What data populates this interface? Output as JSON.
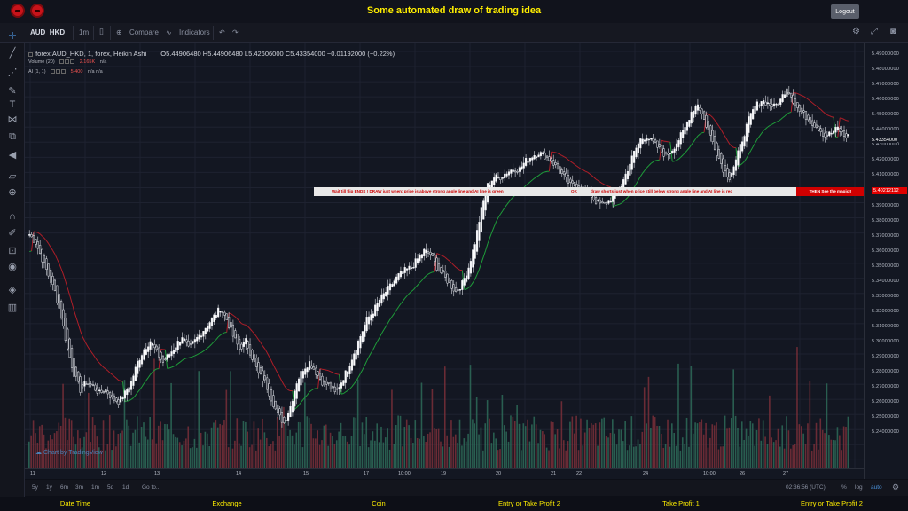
{
  "app_title": "Some automated draw of trading idea",
  "logout_label": "Logout",
  "toolbar": {
    "symbol": "AUD_HKD",
    "interval": "1m",
    "compare": "Compare",
    "indicators": "Indicators"
  },
  "legend": {
    "title": "forex:AUD_HKD, 1, forex, Heikin Ashi",
    "ohlc": "O5.44906480  H5.44906480  L5.42606000  C5.43354000  −0.01192000 (−0.22%)",
    "volume": "Volume (20)",
    "volume_value": "2.165K",
    "volume_na": "n/a",
    "ai": "AI (1, 1)",
    "ai_value": "5.400",
    "ai_na": "n/a  n/a"
  },
  "banner": {
    "part1": "Wait till flip ENDS  !   DRAW just when: price is above strong angle line and AI line is green",
    "ok": "OK",
    "part2": "draw shorts just when price still below strong angle line and AI line is red",
    "magic": "THEN See the magic!!"
  },
  "price_axis": [
    "5.49000000",
    "5.48000000",
    "5.47000000",
    "5.46000000",
    "5.45000000",
    "5.44000000",
    "5.43000000",
    "5.42000000",
    "5.41000000",
    "5.40000000",
    "5.39000000",
    "5.38000000",
    "5.37000000",
    "5.36000000",
    "5.35000000",
    "5.34000000",
    "5.33000000",
    "5.32000000",
    "5.31000000",
    "5.30000000",
    "5.29000000",
    "5.28000000",
    "5.27000000",
    "5.26000000",
    "5.25000000",
    "5.24000000"
  ],
  "current_price": "5.43354000",
  "marker_price": "5.40212112",
  "time_axis": [
    "11",
    "12",
    "13",
    "14",
    "15",
    "17",
    "10:00",
    "19",
    "20",
    "21",
    "22",
    "24",
    "10:00",
    "26",
    "27"
  ],
  "bottom": {
    "ranges": [
      "5y",
      "1y",
      "6m",
      "3m",
      "1m",
      "5d",
      "1d"
    ],
    "goto": "Go to...",
    "clock": "02:36:56 (UTC)",
    "percent": "%",
    "log": "log",
    "auto": "auto"
  },
  "watermark": "Chart by TradingView",
  "footer": [
    "Date Time",
    "Exchange",
    "Coin",
    "Entry or Take Profit 2",
    "Take Profit 1",
    "Entry or Take Profit 2"
  ],
  "colors": {
    "accent": "#ffee00",
    "up": "#26a69a",
    "down": "#ef5350",
    "banner_red": "#d00000"
  },
  "chart_data": {
    "type": "candlestick",
    "style": "Heikin Ashi",
    "ylim": [
      5.235,
      5.495
    ],
    "close_path": [
      5.38,
      5.375,
      5.365,
      5.355,
      5.345,
      5.33,
      5.31,
      5.295,
      5.285,
      5.29,
      5.287,
      5.283,
      5.285,
      5.28,
      5.278,
      5.283,
      5.29,
      5.302,
      5.31,
      5.315,
      5.308,
      5.302,
      5.307,
      5.312,
      5.318,
      5.31,
      5.315,
      5.32,
      5.325,
      5.33,
      5.335,
      5.328,
      5.318,
      5.31,
      5.315,
      5.305,
      5.295,
      5.29,
      5.28,
      5.27,
      5.265,
      5.275,
      5.29,
      5.298,
      5.302,
      5.296,
      5.29,
      5.288,
      5.283,
      5.29,
      5.298,
      5.308,
      5.318,
      5.328,
      5.333,
      5.34,
      5.345,
      5.35,
      5.355,
      5.358,
      5.36,
      5.365,
      5.37,
      5.368,
      5.36,
      5.355,
      5.35,
      5.345,
      5.35,
      5.36,
      5.375,
      5.395,
      5.41,
      5.415,
      5.415,
      5.418,
      5.42,
      5.42,
      5.425,
      5.428,
      5.43,
      5.428,
      5.425,
      5.42,
      5.415,
      5.41,
      5.41,
      5.408,
      5.405,
      5.4,
      5.398,
      5.4,
      5.405,
      5.41,
      5.42,
      5.43,
      5.438,
      5.44,
      5.436,
      5.432,
      5.428,
      5.432,
      5.438,
      5.445,
      5.455,
      5.46,
      5.45,
      5.44,
      5.43,
      5.42,
      5.415,
      5.425,
      5.438,
      5.45,
      5.458,
      5.462,
      5.46,
      5.458,
      5.462,
      5.47,
      5.462,
      5.455,
      5.452,
      5.448,
      5.445,
      5.44,
      5.442,
      5.445,
      5.44
    ],
    "ai_line_colors": [
      "red",
      "green"
    ],
    "volume_bars": "mixed green/red"
  }
}
